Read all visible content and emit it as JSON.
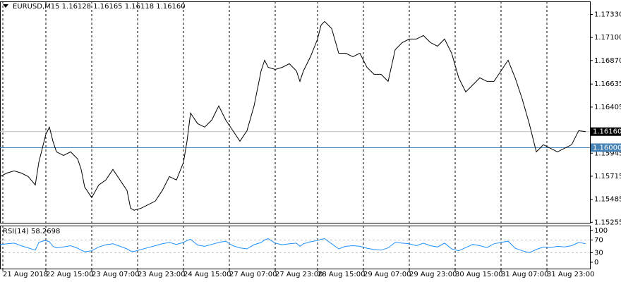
{
  "chart_data": [
    {
      "type": "line",
      "title": "EURUSD,M15  1.16128 1.16165 1.16118 1.16160",
      "color": "#000000",
      "x": [
        0,
        10,
        20,
        30,
        40,
        50,
        55,
        60,
        65,
        70,
        75,
        80,
        90,
        100,
        110,
        115,
        120,
        130,
        140,
        150,
        160,
        170,
        180,
        185,
        190,
        200,
        210,
        220,
        230,
        240,
        250,
        260,
        265,
        270,
        280,
        290,
        300,
        310,
        320,
        330,
        340,
        350,
        360,
        370,
        375,
        380,
        390,
        400,
        410,
        420,
        425,
        430,
        440,
        450,
        455,
        460,
        470,
        480,
        490,
        500,
        510,
        520,
        530,
        540,
        550,
        560,
        570,
        580,
        590,
        600,
        610,
        620,
        630,
        640,
        650,
        660,
        670,
        680,
        690,
        700,
        710,
        720,
        730,
        740,
        750,
        760,
        770,
        780,
        790,
        800,
        810,
        820,
        830
      ],
      "values": [
        1.15712,
        1.15747,
        1.15768,
        1.15747,
        1.15712,
        1.15628,
        1.15853,
        1.15994,
        1.16134,
        1.16205,
        1.16064,
        1.15958,
        1.15923,
        1.15958,
        1.15888,
        1.15783,
        1.15607,
        1.15501,
        1.15628,
        1.15677,
        1.15783,
        1.15677,
        1.15572,
        1.15396,
        1.15375,
        1.15396,
        1.15431,
        1.15466,
        1.15572,
        1.15712,
        1.15677,
        1.15853,
        1.16064,
        1.16345,
        1.1624,
        1.16205,
        1.16275,
        1.16416,
        1.16275,
        1.16169,
        1.16064,
        1.16169,
        1.16416,
        1.16767,
        1.16873,
        1.16802,
        1.16781,
        1.16802,
        1.16838,
        1.16767,
        1.16662,
        1.16767,
        1.16908,
        1.17084,
        1.17224,
        1.1726,
        1.17189,
        1.16943,
        1.16943,
        1.16908,
        1.16943,
        1.16802,
        1.16732,
        1.16732,
        1.16662,
        1.16978,
        1.17049,
        1.17084,
        1.17084,
        1.17119,
        1.17049,
        1.17013,
        1.17084,
        1.16943,
        1.16697,
        1.16556,
        1.16627,
        1.16697,
        1.16662,
        1.16662,
        1.16767,
        1.16873,
        1.16697,
        1.16486,
        1.1624,
        1.15958,
        1.16029,
        1.15994,
        1.15958,
        1.15994,
        1.16029,
        1.16169,
        1.1616
      ],
      "xlim": [
        0,
        836
      ],
      "xticks": [
        {
          "value": 4,
          "label": "21 Aug 2018"
        },
        {
          "value": 65,
          "label": "22 Aug 15:00"
        },
        {
          "value": 130,
          "label": "23 Aug 07:00"
        },
        {
          "value": 195,
          "label": "23 Aug 23:00"
        },
        {
          "value": 260,
          "label": "24 Aug 15:00"
        },
        {
          "value": 325,
          "label": "27 Aug 07:00"
        },
        {
          "value": 390,
          "label": "27 Aug 23:00"
        },
        {
          "value": 450,
          "label": "28 Aug 15:00"
        },
        {
          "value": 515,
          "label": "29 Aug 07:00"
        },
        {
          "value": 580,
          "label": "29 Aug 23:00"
        },
        {
          "value": 645,
          "label": "30 Aug 15:00"
        },
        {
          "value": 710,
          "label": "31 Aug 07:00"
        },
        {
          "value": 775,
          "label": "31 Aug 23:00"
        }
      ],
      "ylim": [
        1.1525,
        1.1746
      ],
      "yticks": [
        {
          "value": 1.1733,
          "label": "1.17330"
        },
        {
          "value": 1.171,
          "label": "1.17100"
        },
        {
          "value": 1.1687,
          "label": "1.16870"
        },
        1.16635,
        1.16405,
        1.15945,
        1.15715,
        1.15485,
        1.15255
      ],
      "price_lines": [
        {
          "value": 1.1616,
          "label": "1.16160",
          "line_color": "#c0c0c0",
          "box_color": "#000000"
        },
        {
          "value": 1.16,
          "label": "1.16000",
          "line_color": "#4682b4",
          "box_color": "#4682b4"
        }
      ],
      "grid": true
    },
    {
      "type": "line",
      "title": "RSI(14) 58.2698",
      "color": "#1e90ff",
      "values": [
        55,
        58,
        60,
        52,
        45,
        38,
        62,
        66,
        68,
        64,
        50,
        45,
        48,
        52,
        44,
        38,
        33,
        36,
        48,
        55,
        58,
        50,
        42,
        35,
        34,
        40,
        46,
        52,
        58,
        62,
        56,
        62,
        68,
        72,
        54,
        50,
        56,
        62,
        66,
        52,
        45,
        42,
        55,
        62,
        70,
        74,
        60,
        55,
        58,
        60,
        50,
        58,
        64,
        68,
        72,
        74,
        58,
        42,
        50,
        52,
        50,
        44,
        40,
        38,
        45,
        62,
        60,
        58,
        52,
        60,
        52,
        48,
        60,
        42,
        36,
        46,
        56,
        52,
        46,
        58,
        62,
        66,
        44,
        36,
        30,
        40,
        48,
        46,
        50,
        48,
        52,
        62,
        58.27
      ],
      "ylim": [
        -20,
        115
      ],
      "yticks": [
        100,
        70,
        30,
        0
      ],
      "levels": [
        70,
        30
      ]
    }
  ]
}
